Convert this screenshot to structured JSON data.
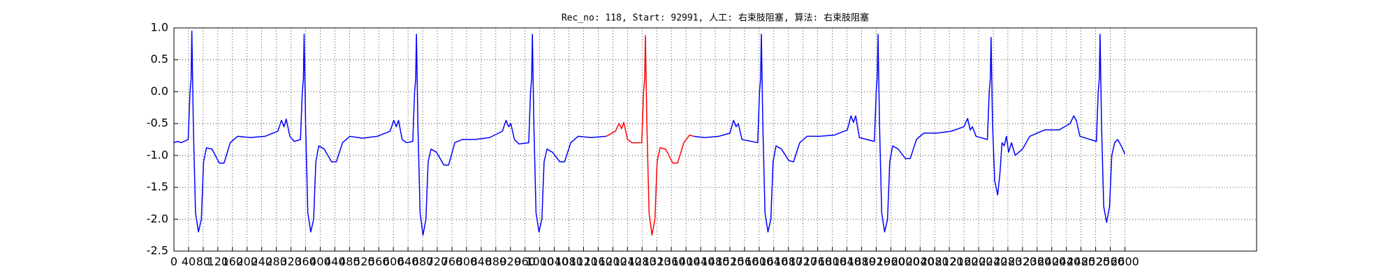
{
  "chart_data": {
    "type": "line",
    "title": "Rec_no: 118, Start: 92991, 人工: 右束肢阻塞, 算法: 右束肢阻塞",
    "xlim": [
      0,
      2960
    ],
    "xticks": [
      0,
      40,
      80,
      120,
      160,
      200,
      240,
      280,
      320,
      360,
      400,
      440,
      480,
      520,
      560,
      600,
      640,
      680,
      720,
      760,
      800,
      840,
      880,
      920,
      960,
      1000,
      1040,
      1080,
      1120,
      1160,
      1200,
      1240,
      1280,
      1320,
      1360,
      1400,
      1440,
      1480,
      1520,
      1560,
      1600,
      1640,
      1680,
      1720,
      1760,
      1800,
      1840,
      1880,
      1920,
      1960,
      2000,
      2040,
      2080,
      2120,
      2160,
      2200,
      2240,
      2280,
      2320,
      2360,
      2400,
      2440,
      2480,
      2520,
      2560,
      2600
    ],
    "ylim": [
      -2.5,
      1.0
    ],
    "yticks": [
      {
        "value": -2.5,
        "label": "-2.5"
      },
      {
        "value": -2,
        "label": "-2.0"
      },
      {
        "value": -1.5,
        "label": "-1.5"
      },
      {
        "value": -1,
        "label": "-1.0"
      },
      -0.5,
      {
        "value": 0,
        "label": "0.0"
      },
      0.5,
      {
        "value": 1,
        "label": "1.0"
      }
    ],
    "grid": true,
    "series": [
      {
        "color": "#0000ff",
        "x": [
          0,
          10,
          20,
          39,
          44,
          47,
          49,
          53,
          59,
          67,
          75,
          81,
          89,
          104,
          124,
          137,
          154,
          174,
          209,
          249,
          284,
          294,
          301,
          307,
          317,
          329,
          346,
          351,
          354,
          356,
          360,
          366,
          374,
          382,
          388,
          396,
          411,
          431,
          444,
          461,
          481,
          516,
          556,
          591,
          601,
          608,
          614,
          624,
          636,
          653,
          658,
          661,
          663,
          667,
          673,
          681,
          689,
          695,
          703,
          718,
          738,
          751,
          768,
          788,
          823,
          863,
          898,
          908,
          915,
          921,
          931,
          943,
          970,
          975,
          978,
          980,
          984,
          990,
          998,
          1006,
          1012,
          1020,
          1035,
          1055,
          1068,
          1085,
          1105,
          1140,
          1182,
          1300,
          1421,
          1450,
          1490,
          1520,
          1530,
          1537,
          1543,
          1553,
          1596,
          1601,
          1604,
          1606,
          1610,
          1616,
          1624,
          1632,
          1638,
          1646,
          1661,
          1681,
          1694,
          1711,
          1731,
          1766,
          1806,
          1841,
          1851,
          1858,
          1864,
          1874,
          1915,
          1920,
          1923,
          1925,
          1929,
          1935,
          1943,
          1951,
          1957,
          1965,
          1980,
          2000,
          2013,
          2030,
          2050,
          2085,
          2125,
          2160,
          2170,
          2177,
          2183,
          2193,
          2224,
          2229,
          2232,
          2234,
          2238,
          2244,
          2252,
          2258,
          2264,
          2270,
          2276,
          2282,
          2290,
          2300,
          2320,
          2340,
          2380,
          2420,
          2450,
          2460,
          2467,
          2477,
          2522,
          2527,
          2530,
          2532,
          2536,
          2542,
          2550,
          2558,
          2564,
          2572,
          2580,
          2590,
          2600
        ],
        "values": [
          -0.8,
          -0.78,
          -0.8,
          -0.75,
          0.0,
          0.2,
          0.95,
          -0.5,
          -1.9,
          -2.2,
          -2.0,
          -1.1,
          -0.88,
          -0.9,
          -1.12,
          -1.12,
          -0.8,
          -0.7,
          -0.72,
          -0.7,
          -0.62,
          -0.45,
          -0.55,
          -0.43,
          -0.7,
          -0.78,
          -0.75,
          0.0,
          0.2,
          0.9,
          -0.5,
          -1.9,
          -2.2,
          -2.0,
          -1.1,
          -0.85,
          -0.9,
          -1.1,
          -1.1,
          -0.8,
          -0.7,
          -0.73,
          -0.7,
          -0.62,
          -0.45,
          -0.55,
          -0.45,
          -0.75,
          -0.8,
          -0.78,
          0.0,
          0.2,
          0.9,
          -0.5,
          -1.9,
          -2.25,
          -2.0,
          -1.1,
          -0.9,
          -0.95,
          -1.15,
          -1.15,
          -0.8,
          -0.75,
          -0.75,
          -0.72,
          -0.62,
          -0.45,
          -0.55,
          -0.5,
          -0.75,
          -0.82,
          -0.8,
          0.0,
          0.2,
          0.9,
          -0.5,
          -1.9,
          -2.2,
          -2.0,
          -1.1,
          -0.9,
          -0.95,
          -1.1,
          -1.1,
          -0.8,
          -0.7,
          -0.72,
          -0.7,
          null,
          -0.7,
          -0.72,
          -0.7,
          -0.65,
          -0.45,
          -0.55,
          -0.5,
          -0.75,
          -0.8,
          0.0,
          0.2,
          0.9,
          -0.5,
          -1.9,
          -2.2,
          -2.0,
          -1.1,
          -0.85,
          -0.9,
          -1.08,
          -1.1,
          -0.8,
          -0.7,
          -0.7,
          -0.68,
          -0.6,
          -0.38,
          -0.48,
          -0.38,
          -0.72,
          -0.78,
          0.0,
          0.25,
          0.9,
          -0.5,
          -1.9,
          -2.2,
          -2.0,
          -1.1,
          -0.85,
          -0.9,
          -1.05,
          -1.05,
          -0.75,
          -0.65,
          -0.65,
          -0.62,
          -0.55,
          -0.42,
          -0.6,
          -0.55,
          -0.7,
          -0.75,
          0.0,
          0.2,
          0.85,
          -0.5,
          -1.4,
          -1.62,
          -1.3,
          -0.8,
          -0.85,
          -0.7,
          -0.95,
          -0.8,
          -1.0,
          -0.9,
          -0.7,
          -0.6,
          -0.6,
          -0.5,
          -0.38,
          -0.45,
          -0.7,
          -0.78,
          0.0,
          0.2,
          0.9,
          -0.5,
          -1.8,
          -2.05,
          -1.8,
          -1.0,
          -0.8,
          -0.75,
          -0.85,
          -0.98
        ]
      },
      {
        "color": "#ff0000",
        "x": [
          1182,
          1207,
          1217,
          1224,
          1230,
          1240,
          1252,
          1279,
          1284,
          1287,
          1289,
          1293,
          1299,
          1307,
          1315,
          1321,
          1329,
          1344,
          1364,
          1377,
          1394,
          1410,
          1421
        ],
        "values": [
          -0.7,
          -0.62,
          -0.5,
          -0.58,
          -0.48,
          -0.75,
          -0.8,
          -0.8,
          0.0,
          0.2,
          0.88,
          -0.5,
          -1.9,
          -2.25,
          -2.0,
          -1.1,
          -0.88,
          -0.9,
          -1.12,
          -1.12,
          -0.8,
          -0.68,
          -0.7
        ]
      }
    ]
  }
}
